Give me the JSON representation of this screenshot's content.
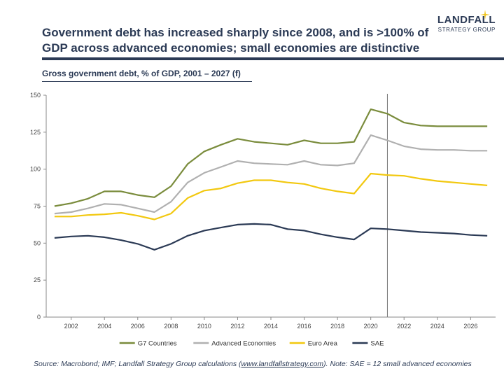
{
  "headline": "Government debt has increased sharply since 2008, and is >100% of GDP across advanced economies; small economies are distinctive",
  "logo": {
    "main": "LANDFALL",
    "sub": "STRATEGY GROUP"
  },
  "source": {
    "prefix": "Source: Macrobond; IMF; Landfall Strategy Group calculations (",
    "link": "www.landfallstrategy.com",
    "suffix": "). Note: SAE = 12 small advanced economies"
  },
  "colors": {
    "navy": "#2b3a55",
    "gold_star": "#f0c419"
  },
  "chart_data": {
    "type": "line",
    "title": "Gross government debt, % of GDP, 2001 – 2027 (f)",
    "x": [
      2001,
      2002,
      2003,
      2004,
      2005,
      2006,
      2007,
      2008,
      2009,
      2010,
      2011,
      2012,
      2013,
      2014,
      2015,
      2016,
      2017,
      2018,
      2019,
      2020,
      2021,
      2022,
      2023,
      2024,
      2025,
      2026,
      2027
    ],
    "x_ticks": [
      2002,
      2004,
      2006,
      2008,
      2010,
      2012,
      2014,
      2016,
      2018,
      2020,
      2022,
      2024,
      2026
    ],
    "y_ticks": [
      0,
      25,
      50,
      75,
      100,
      125,
      150
    ],
    "ylim": [
      0,
      150
    ],
    "xlim": [
      2000.5,
      2027.5
    ],
    "forecast_line_x": 2021,
    "grid": false,
    "legend_position": "bottom",
    "series": [
      {
        "name": "G7 Countries",
        "color": "#7a8c3c",
        "values": [
          75,
          77,
          80,
          85,
          85,
          82.5,
          81,
          88.5,
          103.5,
          112,
          116.5,
          120.5,
          118.5,
          117.5,
          116.5,
          119.5,
          117.5,
          117.5,
          118.5,
          140.5,
          137.5,
          131.5,
          129.5,
          129,
          129,
          129,
          129
        ]
      },
      {
        "name": "Advanced Economies",
        "color": "#b0b0b0",
        "values": [
          70,
          71,
          73.5,
          76.5,
          76,
          73.5,
          71,
          78,
          91,
          97.5,
          101.5,
          105.5,
          104,
          103.5,
          103,
          105.5,
          103,
          102.5,
          104,
          123,
          119.5,
          115.5,
          113.5,
          113,
          113,
          112.5,
          112.5
        ]
      },
      {
        "name": "Euro Area",
        "color": "#f2c80f",
        "values": [
          68,
          68,
          69,
          69.5,
          70.5,
          68.5,
          66,
          70,
          80.5,
          85.5,
          87,
          90.5,
          92.5,
          92.5,
          91,
          90,
          87,
          85,
          83.5,
          97,
          96,
          95.5,
          93.5,
          92,
          91,
          90,
          89
        ]
      },
      {
        "name": "SAE",
        "color": "#2b3a55",
        "values": [
          53.5,
          54.5,
          55,
          54,
          52,
          49.5,
          45.5,
          49.5,
          55,
          58.5,
          60.5,
          62.5,
          63,
          62.5,
          59.5,
          58.5,
          56,
          54,
          52.5,
          60,
          59.5,
          58.5,
          57.5,
          57,
          56.5,
          55.5,
          55
        ]
      }
    ]
  }
}
